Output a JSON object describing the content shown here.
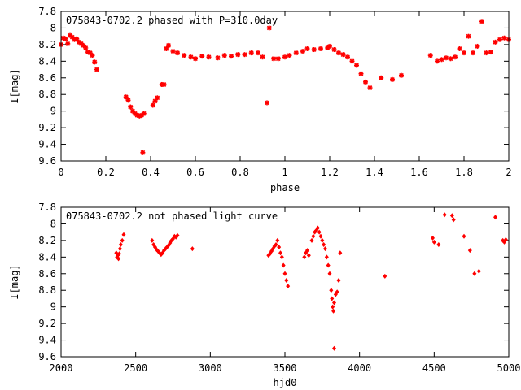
{
  "chart_data": [
    {
      "type": "scatter",
      "title": "075843-0702.2 phased with P=310.0day",
      "xlabel": "phase",
      "ylabel": "I[mag]",
      "xlim": [
        0,
        2
      ],
      "ylim": [
        9.6,
        7.8
      ],
      "y_inverted": true,
      "grid": false,
      "xticks": [
        "0",
        "0.2",
        "0.4",
        "0.6",
        "0.8",
        "1",
        "1.2",
        "1.4",
        "1.6",
        "1.8",
        "2"
      ],
      "yticks": [
        "7.8",
        "8",
        "8.2",
        "8.4",
        "8.6",
        "8.8",
        "9",
        "9.2",
        "9.4",
        "9.6"
      ],
      "marker": "star",
      "color": "#ff0000",
      "points": [
        [
          0.0,
          8.2
        ],
        [
          0.01,
          8.12
        ],
        [
          0.02,
          8.13
        ],
        [
          0.03,
          8.19
        ],
        [
          0.04,
          8.09
        ],
        [
          0.05,
          8.11
        ],
        [
          0.06,
          8.14
        ],
        [
          0.07,
          8.13
        ],
        [
          0.08,
          8.17
        ],
        [
          0.09,
          8.19
        ],
        [
          0.1,
          8.21
        ],
        [
          0.11,
          8.24
        ],
        [
          0.12,
          8.29
        ],
        [
          0.13,
          8.3
        ],
        [
          0.14,
          8.33
        ],
        [
          0.15,
          8.41
        ],
        [
          0.16,
          8.5
        ],
        [
          0.29,
          8.83
        ],
        [
          0.3,
          8.87
        ],
        [
          0.31,
          8.95
        ],
        [
          0.32,
          9.0
        ],
        [
          0.33,
          9.03
        ],
        [
          0.34,
          9.05
        ],
        [
          0.35,
          9.06
        ],
        [
          0.36,
          9.05
        ],
        [
          0.37,
          9.03
        ],
        [
          0.365,
          9.5
        ],
        [
          0.41,
          8.93
        ],
        [
          0.42,
          8.88
        ],
        [
          0.43,
          8.84
        ],
        [
          0.45,
          8.68
        ],
        [
          0.46,
          8.68
        ],
        [
          0.47,
          8.25
        ],
        [
          0.48,
          8.21
        ],
        [
          0.5,
          8.28
        ],
        [
          0.52,
          8.3
        ],
        [
          0.55,
          8.33
        ],
        [
          0.58,
          8.35
        ],
        [
          0.6,
          8.37
        ],
        [
          0.63,
          8.34
        ],
        [
          0.66,
          8.35
        ],
        [
          0.7,
          8.36
        ],
        [
          0.73,
          8.33
        ],
        [
          0.76,
          8.34
        ],
        [
          0.79,
          8.32
        ],
        [
          0.82,
          8.32
        ],
        [
          0.85,
          8.3
        ],
        [
          0.88,
          8.3
        ],
        [
          0.9,
          8.35
        ],
        [
          0.92,
          8.9
        ],
        [
          0.93,
          8.0
        ],
        [
          0.95,
          8.37
        ],
        [
          0.97,
          8.37
        ],
        [
          1.0,
          8.35
        ],
        [
          1.02,
          8.33
        ],
        [
          1.05,
          8.3
        ],
        [
          1.08,
          8.28
        ],
        [
          1.1,
          8.25
        ],
        [
          1.13,
          8.26
        ],
        [
          1.16,
          8.25
        ],
        [
          1.19,
          8.24
        ],
        [
          1.2,
          8.22
        ],
        [
          1.22,
          8.26
        ],
        [
          1.24,
          8.3
        ],
        [
          1.26,
          8.32
        ],
        [
          1.28,
          8.35
        ],
        [
          1.3,
          8.4
        ],
        [
          1.32,
          8.45
        ],
        [
          1.34,
          8.55
        ],
        [
          1.36,
          8.65
        ],
        [
          1.38,
          8.72
        ],
        [
          1.43,
          8.6
        ],
        [
          1.48,
          8.62
        ],
        [
          1.52,
          8.57
        ],
        [
          1.65,
          8.33
        ],
        [
          1.68,
          8.4
        ],
        [
          1.7,
          8.38
        ],
        [
          1.72,
          8.36
        ],
        [
          1.74,
          8.37
        ],
        [
          1.76,
          8.35
        ],
        [
          1.78,
          8.25
        ],
        [
          1.8,
          8.3
        ],
        [
          1.82,
          8.1
        ],
        [
          1.84,
          8.3
        ],
        [
          1.86,
          8.22
        ],
        [
          1.88,
          7.92
        ],
        [
          1.9,
          8.3
        ],
        [
          1.92,
          8.29
        ],
        [
          1.94,
          8.17
        ],
        [
          1.96,
          8.14
        ],
        [
          1.98,
          8.12
        ],
        [
          2.0,
          8.14
        ]
      ]
    },
    {
      "type": "scatter",
      "title": "075843-0702.2 not phased light curve",
      "xlabel": "hjd0",
      "ylabel": "I[mag]",
      "xlim": [
        2000,
        5000
      ],
      "ylim": [
        9.6,
        7.8
      ],
      "y_inverted": true,
      "grid": false,
      "xticks": [
        "2000",
        "2500",
        "3000",
        "3500",
        "4000",
        "4500",
        "5000"
      ],
      "yticks": [
        "7.8",
        "8",
        "8.2",
        "8.4",
        "8.6",
        "8.8",
        "9",
        "9.2",
        "9.4",
        "9.6"
      ],
      "marker": "diamond",
      "color": "#ff0000",
      "points": [
        [
          2370,
          8.35
        ],
        [
          2375,
          8.4
        ],
        [
          2380,
          8.38
        ],
        [
          2385,
          8.42
        ],
        [
          2390,
          8.36
        ],
        [
          2395,
          8.3
        ],
        [
          2400,
          8.25
        ],
        [
          2410,
          8.2
        ],
        [
          2420,
          8.13
        ],
        [
          2610,
          8.2
        ],
        [
          2620,
          8.25
        ],
        [
          2630,
          8.28
        ],
        [
          2640,
          8.31
        ],
        [
          2650,
          8.33
        ],
        [
          2660,
          8.35
        ],
        [
          2670,
          8.37
        ],
        [
          2680,
          8.35
        ],
        [
          2690,
          8.32
        ],
        [
          2700,
          8.3
        ],
        [
          2710,
          8.28
        ],
        [
          2720,
          8.26
        ],
        [
          2730,
          8.23
        ],
        [
          2740,
          8.2
        ],
        [
          2750,
          8.18
        ],
        [
          2760,
          8.15
        ],
        [
          2770,
          8.16
        ],
        [
          2780,
          8.14
        ],
        [
          2880,
          8.3
        ],
        [
          3390,
          8.38
        ],
        [
          3400,
          8.36
        ],
        [
          3410,
          8.33
        ],
        [
          3420,
          8.3
        ],
        [
          3430,
          8.27
        ],
        [
          3440,
          8.25
        ],
        [
          3450,
          8.2
        ],
        [
          3460,
          8.28
        ],
        [
          3470,
          8.35
        ],
        [
          3480,
          8.4
        ],
        [
          3490,
          8.5
        ],
        [
          3500,
          8.6
        ],
        [
          3510,
          8.68
        ],
        [
          3520,
          8.75
        ],
        [
          3630,
          8.4
        ],
        [
          3640,
          8.35
        ],
        [
          3650,
          8.32
        ],
        [
          3660,
          8.38
        ],
        [
          3680,
          8.2
        ],
        [
          3690,
          8.15
        ],
        [
          3700,
          8.1
        ],
        [
          3710,
          8.08
        ],
        [
          3720,
          8.05
        ],
        [
          3730,
          8.1
        ],
        [
          3740,
          8.15
        ],
        [
          3750,
          8.2
        ],
        [
          3760,
          8.25
        ],
        [
          3770,
          8.3
        ],
        [
          3780,
          8.4
        ],
        [
          3790,
          8.5
        ],
        [
          3800,
          8.6
        ],
        [
          3810,
          8.8
        ],
        [
          3815,
          8.9
        ],
        [
          3820,
          9.0
        ],
        [
          3825,
          9.05
        ],
        [
          3830,
          8.95
        ],
        [
          3840,
          8.85
        ],
        [
          3850,
          8.82
        ],
        [
          3860,
          8.68
        ],
        [
          3870,
          8.35
        ],
        [
          3830,
          9.5
        ],
        [
          4170,
          8.63
        ],
        [
          4490,
          8.17
        ],
        [
          4500,
          8.22
        ],
        [
          4530,
          8.25
        ],
        [
          4570,
          7.89
        ],
        [
          4620,
          7.9
        ],
        [
          4630,
          7.95
        ],
        [
          4700,
          8.15
        ],
        [
          4740,
          8.32
        ],
        [
          4770,
          8.6
        ],
        [
          4800,
          8.57
        ],
        [
          4910,
          7.92
        ],
        [
          4960,
          8.2
        ],
        [
          4970,
          8.22
        ],
        [
          4980,
          8.19
        ]
      ]
    }
  ]
}
